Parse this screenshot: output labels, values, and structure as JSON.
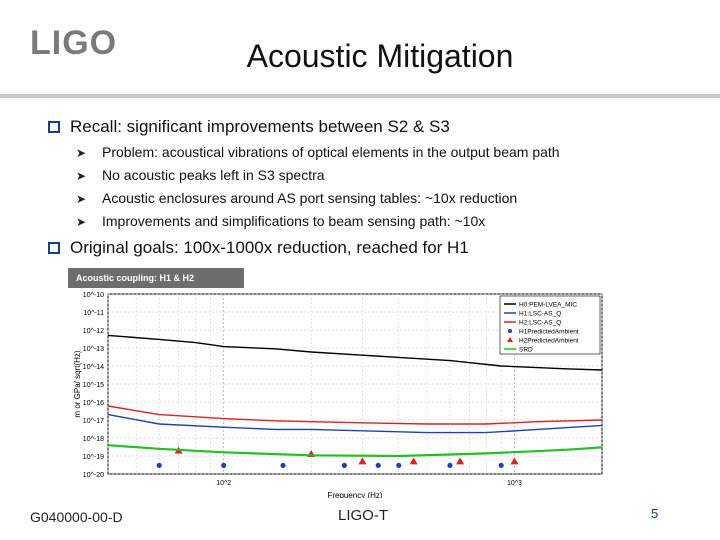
{
  "logo": "LIGO",
  "title": "Acoustic Mitigation",
  "bullets": [
    {
      "text": "Recall: significant improvements between S2 & S3"
    },
    {
      "text": "Original goals: 100x-1000x reduction, reached for H1"
    }
  ],
  "sub_bullets": [
    "Problem: acoustical vibrations of optical elements in the output beam path",
    "No acoustic peaks left in S3 spectra",
    "Acoustic enclosures around AS port sensing tables: ~10x reduction",
    "Improvements and simplifications to beam sensing path: ~10x"
  ],
  "footer": {
    "left": "G040000-00-D",
    "middle": "LIGO-T",
    "page": "5"
  },
  "colors": {
    "bullet_square": "#1a3c8c",
    "title_bar": "#6d6d6d"
  },
  "chart_data": {
    "type": "line",
    "title": "Acoustic coupling: H1 & H2",
    "xlabel": "Frequency (Hz)",
    "ylabel": "m or GPa/ sqrt(Hz)",
    "xscale": "log",
    "yscale": "log",
    "xlim": [
      40,
      2000
    ],
    "ylim": [
      1e-20,
      1e-10
    ],
    "x_ticks": [
      "10^2",
      "10^3"
    ],
    "y_ticks": [
      "10^-10",
      "10^-11",
      "10^-12",
      "10^-13",
      "10^-14",
      "10^-15",
      "10^-16",
      "10^-17",
      "10^-18",
      "10^-19",
      "10^-20"
    ],
    "grid": true,
    "legend_position": "top-right",
    "series": [
      {
        "name": "H0:PEM-LVEA_MIC",
        "color": "#000000",
        "kind": "line",
        "points": [
          [
            40,
            5e-13
          ],
          [
            60,
            3e-13
          ],
          [
            80,
            2e-13
          ],
          [
            100,
            1.2e-13
          ],
          [
            150,
            9e-14
          ],
          [
            200,
            6e-14
          ],
          [
            300,
            4e-14
          ],
          [
            400,
            3e-14
          ],
          [
            600,
            2e-14
          ],
          [
            900,
            1e-14
          ],
          [
            1500,
            7e-15
          ],
          [
            2000,
            6e-15
          ]
        ]
      },
      {
        "name": "H1:LSC-AS_Q",
        "color": "#1f3fbf",
        "kind": "line",
        "points": [
          [
            40,
            2e-17
          ],
          [
            60,
            6e-18
          ],
          [
            100,
            4e-18
          ],
          [
            150,
            3e-18
          ],
          [
            200,
            3e-18
          ],
          [
            300,
            2.5e-18
          ],
          [
            500,
            2e-18
          ],
          [
            800,
            2e-18
          ],
          [
            1200,
            3e-18
          ],
          [
            2000,
            5e-18
          ]
        ]
      },
      {
        "name": "H2:LSC-AS_Q",
        "color": "#e02020",
        "kind": "line",
        "points": [
          [
            40,
            6e-17
          ],
          [
            60,
            2e-17
          ],
          [
            100,
            1.2e-17
          ],
          [
            150,
            9e-18
          ],
          [
            200,
            8e-18
          ],
          [
            300,
            7e-18
          ],
          [
            500,
            6e-18
          ],
          [
            800,
            6e-18
          ],
          [
            1200,
            8e-18
          ],
          [
            2000,
            1e-17
          ]
        ]
      },
      {
        "name": "H1PredictedAmbient",
        "color": "#1f3fbf",
        "kind": "markers-circle",
        "points": [
          [
            60,
            3e-20
          ],
          [
            100,
            3e-20
          ],
          [
            160,
            3e-20
          ],
          [
            260,
            3e-20
          ],
          [
            340,
            3e-20
          ],
          [
            400,
            3e-20
          ],
          [
            600,
            3e-20
          ],
          [
            900,
            3e-20
          ]
        ]
      },
      {
        "name": "H2PredictedAmbient",
        "color": "#e02020",
        "kind": "markers-triangle",
        "points": [
          [
            70,
            2e-19
          ],
          [
            200,
            1.3e-19
          ],
          [
            300,
            5e-20
          ],
          [
            450,
            5e-20
          ],
          [
            650,
            5e-20
          ],
          [
            1000,
            5e-20
          ]
        ]
      },
      {
        "name": "SRD",
        "color": "#22c022",
        "kind": "line",
        "points": [
          [
            40,
            4e-19
          ],
          [
            60,
            2.5e-19
          ],
          [
            100,
            1.6e-19
          ],
          [
            200,
            1.1e-19
          ],
          [
            400,
            1e-19
          ],
          [
            800,
            1.4e-19
          ],
          [
            1500,
            2.2e-19
          ],
          [
            2000,
            3e-19
          ]
        ]
      }
    ]
  }
}
